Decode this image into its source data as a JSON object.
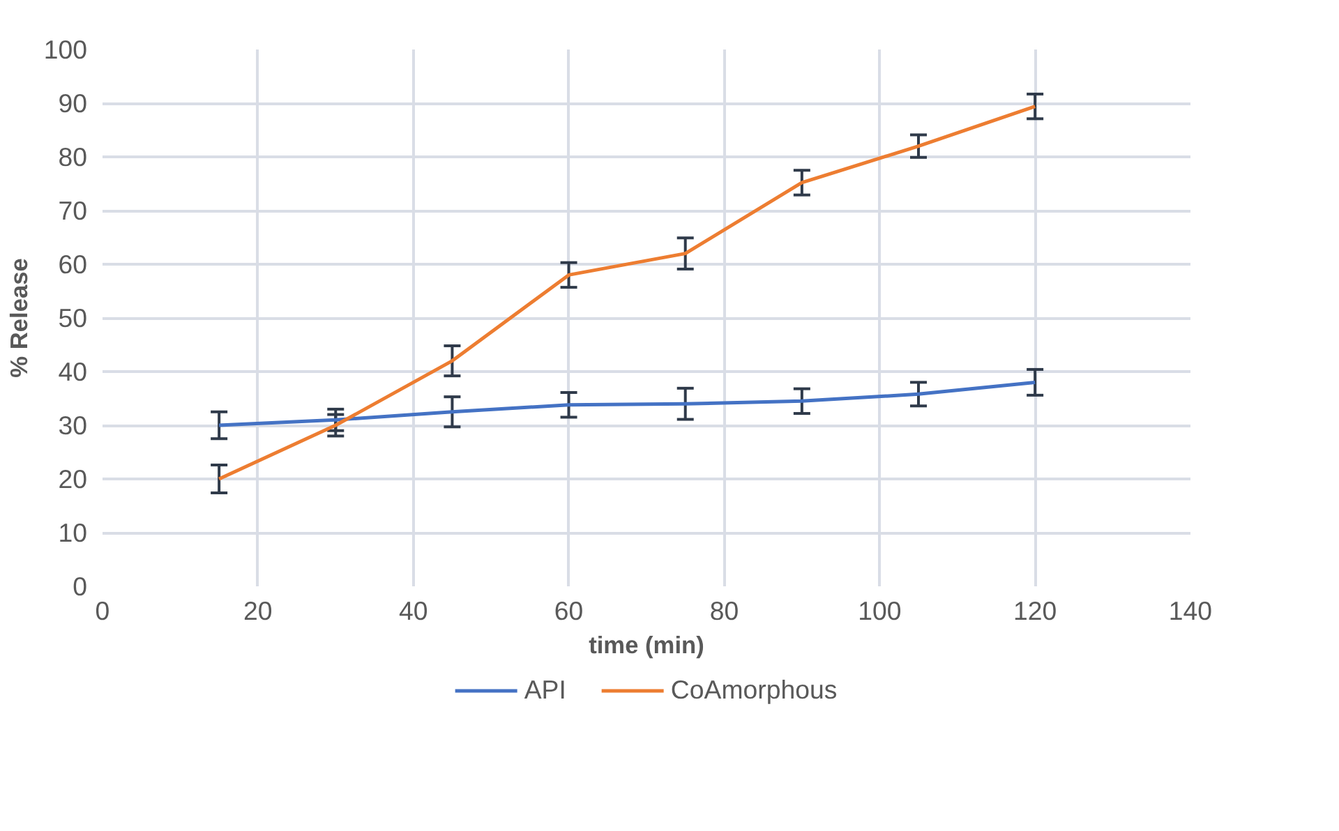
{
  "chart_data": {
    "type": "line",
    "xlabel": "time (min)",
    "ylabel": "% Release",
    "x": [
      15,
      30,
      45,
      60,
      75,
      90,
      105,
      120
    ],
    "series": [
      {
        "name": "API",
        "color": "#4472c4",
        "values": [
          30,
          31,
          32.5,
          33.8,
          34,
          34.5,
          35.8,
          38
        ],
        "errors": [
          2.5,
          2,
          2.8,
          2.3,
          2.9,
          2.3,
          2.2,
          2.4
        ]
      },
      {
        "name": "CoAmorphous",
        "color": "#ed7d31",
        "values": [
          20,
          30,
          42,
          58,
          62,
          75.2,
          82,
          89.4
        ],
        "errors": [
          2.6,
          2,
          2.8,
          2.3,
          2.9,
          2.3,
          2.1,
          2.3
        ]
      }
    ],
    "xlim": [
      0,
      140
    ],
    "xticks": [
      0,
      20,
      40,
      60,
      80,
      100,
      120,
      140
    ],
    "ylim": [
      0,
      100
    ],
    "yticks": [
      0,
      10,
      20,
      30,
      40,
      50,
      60,
      70,
      80,
      90,
      100
    ],
    "grid": true,
    "legend": "bottom",
    "marker": "none",
    "line_style": "solid"
  }
}
